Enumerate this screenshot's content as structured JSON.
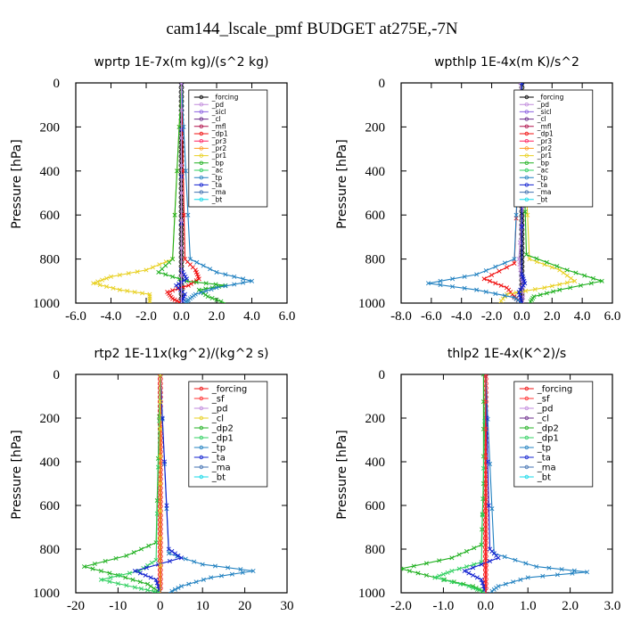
{
  "figure_title": "cam144_lscale_pmf  BUDGET at275E,-7N",
  "colors": {
    "forcing": "#000000",
    "sf": "#ff3030",
    "pd": "#c08adc",
    "sicl": "#8c60e0",
    "cl": "#6a2a8a",
    "mfl": "#b0104a",
    "dp1": "#f01010",
    "pr3": "#ff2060",
    "pr2": "#ff9a20",
    "pr1": "#e8d020",
    "bp": "#20b020",
    "ac": "#30d060",
    "tp": "#2080c0",
    "ta": "#1020d0",
    "ma": "#4070b0",
    "bt": "#10d8e8",
    "dp2": "#20b020",
    "dp1_green": "#30d060"
  },
  "chart_data": [
    {
      "type": "line",
      "title": "wprtp  1E-7x(m kg)/(s^2 kg)",
      "ylabel": "Pressure [hPa]",
      "xlim": [
        -6,
        6
      ],
      "ylim": [
        1000,
        0
      ],
      "xticks": [
        "-6.0",
        "-4.0",
        "-2.0",
        "0.0",
        "2.0",
        "4.0",
        "6.0"
      ],
      "yticks": [
        "0",
        "200",
        "400",
        "600",
        "800",
        "1000"
      ],
      "grid": false,
      "legend_position": "top-right",
      "legend": [
        "_forcing",
        "_pd",
        "_sicl",
        "_cl",
        "_mfl",
        "_dp1",
        "_pr3",
        "_pr2",
        "_pr1",
        "_bp",
        "_ac",
        "_tp",
        "_ta",
        "_ma",
        "_bt"
      ],
      "series": [
        {
          "name": "_forcing",
          "color": "#000000",
          "x": [
            0,
            0,
            0,
            0,
            0
          ],
          "y": [
            0,
            250,
            500,
            750,
            1000
          ]
        },
        {
          "name": "_dp1",
          "color": "#f01010",
          "x": [
            0,
            0.2,
            0.8,
            1.0,
            0.4,
            -0.8,
            -0.5,
            0
          ],
          "y": [
            0,
            800,
            850,
            890,
            920,
            950,
            980,
            1000
          ]
        },
        {
          "name": "_pr1",
          "color": "#e8d020",
          "x": [
            0,
            -0.5,
            -2.0,
            -4.0,
            -5.0,
            -3.5,
            -1.8,
            -1.8
          ],
          "y": [
            0,
            800,
            850,
            880,
            910,
            940,
            960,
            1000
          ]
        },
        {
          "name": "_bp",
          "color": "#20b020",
          "x": [
            0,
            -0.5,
            -1.3,
            0.3,
            2.5,
            1.0,
            1.5,
            2.5
          ],
          "y": [
            0,
            800,
            860,
            900,
            920,
            940,
            970,
            1000
          ]
        },
        {
          "name": "_tp",
          "color": "#2080c0",
          "x": [
            0,
            0.5,
            2.0,
            4.0,
            2.0,
            0.8,
            0.4,
            0.2
          ],
          "y": [
            0,
            800,
            860,
            900,
            930,
            960,
            985,
            1000
          ]
        },
        {
          "name": "_ta",
          "color": "#1020d0",
          "x": [
            0,
            0,
            0.3,
            -0.3,
            0.2,
            0
          ],
          "y": [
            0,
            850,
            890,
            920,
            960,
            1000
          ]
        },
        {
          "name": "_pd",
          "color": "#c08adc",
          "x": [
            0,
            0,
            0
          ],
          "y": [
            0,
            500,
            1000
          ]
        }
      ]
    },
    {
      "type": "line",
      "title": "wpthlp  1E-4x(m K)/s^2",
      "ylabel": "Pressure [hPa]",
      "xlim": [
        -8,
        6
      ],
      "ylim": [
        1000,
        0
      ],
      "xticks": [
        "-8.0",
        "-6.0",
        "-4.0",
        "-2.0",
        "0.0",
        "2.0",
        "4.0",
        "6.0"
      ],
      "yticks": [
        "0",
        "200",
        "400",
        "600",
        "800",
        "1000"
      ],
      "grid": false,
      "legend_position": "top-right",
      "legend": [
        "_forcing",
        "_pd",
        "_sicl",
        "_cl",
        "_mfl",
        "_dp1",
        "_pr3",
        "_pr2",
        "_pr1",
        "_bp",
        "_ac",
        "_tp",
        "_ta",
        "_ma",
        "_bt"
      ],
      "series": [
        {
          "name": "_forcing",
          "color": "#000000",
          "x": [
            0,
            0,
            0,
            0,
            0
          ],
          "y": [
            0,
            250,
            500,
            750,
            1000
          ]
        },
        {
          "name": "_pd",
          "color": "#c08adc",
          "x": [
            -0.1,
            -0.1,
            0.1,
            -0.2,
            0,
            0.1
          ],
          "y": [
            0,
            200,
            500,
            800,
            900,
            1000
          ]
        },
        {
          "name": "_dp1",
          "color": "#f01010",
          "x": [
            0,
            -0.5,
            -2.5,
            -1.0,
            -0.5,
            0
          ],
          "y": [
            0,
            820,
            890,
            930,
            970,
            1000
          ]
        },
        {
          "name": "_pr1",
          "color": "#e8d020",
          "x": [
            0,
            0.5,
            2.5,
            3.5,
            1.5,
            -1.0,
            -1.5
          ],
          "y": [
            0,
            800,
            850,
            900,
            930,
            960,
            1000
          ]
        },
        {
          "name": "_bp",
          "color": "#20b020",
          "x": [
            0,
            0.3,
            3.0,
            5.3,
            2.5,
            0.8,
            0.5
          ],
          "y": [
            0,
            780,
            850,
            900,
            940,
            970,
            1000
          ]
        },
        {
          "name": "_tp",
          "color": "#2080c0",
          "x": [
            0,
            -0.5,
            -3.0,
            -6.2,
            -3.0,
            -0.5,
            0
          ],
          "y": [
            0,
            800,
            870,
            910,
            940,
            975,
            1000
          ]
        },
        {
          "name": "_ta",
          "color": "#1020d0",
          "x": [
            0,
            0,
            0.2,
            -0.2,
            0
          ],
          "y": [
            0,
            870,
            910,
            950,
            1000
          ]
        }
      ]
    },
    {
      "type": "line",
      "title": "rtp2  1E-11x(kg^2)/(kg^2 s)",
      "ylabel": "Pressure [hPa]",
      "xlim": [
        -20,
        30
      ],
      "ylim": [
        1000,
        0
      ],
      "xticks": [
        "-20",
        "-10",
        "0",
        "10",
        "20",
        "30"
      ],
      "yticks": [
        "0",
        "200",
        "400",
        "600",
        "800",
        "1000"
      ],
      "grid": false,
      "legend_position": "top-right",
      "legend": [
        "_forcing",
        "_sf",
        "_pd",
        "_cl",
        "_dp2",
        "_dp1",
        "_tp",
        "_ta",
        "_ma",
        "_bt"
      ],
      "series": [
        {
          "name": "_forcing",
          "color": "#f01010",
          "x": [
            0,
            0,
            0,
            0,
            0
          ],
          "y": [
            0,
            250,
            500,
            750,
            1000
          ]
        },
        {
          "name": "_dp2",
          "color": "#20b020",
          "x": [
            0,
            -1,
            -8,
            -18,
            -10,
            -3,
            0
          ],
          "y": [
            0,
            770,
            830,
            880,
            920,
            960,
            1000
          ]
        },
        {
          "name": "_dp1",
          "color": "#30d060",
          "x": [
            0,
            -1,
            -5,
            -14,
            -6,
            0
          ],
          "y": [
            0,
            850,
            900,
            940,
            975,
            1000
          ]
        },
        {
          "name": "_tp",
          "color": "#2080c0",
          "x": [
            0,
            2,
            10,
            22,
            12,
            5,
            2
          ],
          "y": [
            0,
            820,
            870,
            900,
            930,
            970,
            1000
          ]
        },
        {
          "name": "_ta",
          "color": "#1020d0",
          "x": [
            0,
            2,
            5,
            -6,
            -1,
            0
          ],
          "y": [
            0,
            800,
            840,
            900,
            940,
            1000
          ]
        },
        {
          "name": "_cl",
          "color": "#e8d020",
          "x": [
            0,
            0,
            0
          ],
          "y": [
            0,
            500,
            1000
          ]
        }
      ]
    },
    {
      "type": "line",
      "title": "thlp2  1E-4x(K^2)/s",
      "ylabel": "Pressure [hPa]",
      "xlim": [
        -2,
        3
      ],
      "ylim": [
        1000,
        0
      ],
      "xticks": [
        "-2.0",
        "-1.0",
        "0.0",
        "1.0",
        "2.0",
        "3.0"
      ],
      "yticks": [
        "0",
        "200",
        "400",
        "600",
        "800",
        "1000"
      ],
      "grid": false,
      "legend_position": "top-right",
      "legend": [
        "_forcing",
        "_sf",
        "_pd",
        "_cl",
        "_dp2",
        "_dp1",
        "_tp",
        "_ta",
        "_ma",
        "_bt"
      ],
      "series": [
        {
          "name": "_forcing",
          "color": "#f01010",
          "x": [
            0,
            0,
            0,
            0,
            0
          ],
          "y": [
            0,
            250,
            500,
            750,
            1000
          ]
        },
        {
          "name": "_dp2",
          "color": "#20b020",
          "x": [
            -0.05,
            -0.05,
            -0.1,
            -0.8,
            -2.0,
            -1.2,
            -0.3,
            0
          ],
          "y": [
            0,
            500,
            780,
            840,
            890,
            930,
            970,
            1000
          ]
        },
        {
          "name": "_dp1",
          "color": "#30d060",
          "x": [
            0,
            -0.1,
            -0.8,
            -1.2,
            -0.4,
            0
          ],
          "y": [
            0,
            860,
            900,
            930,
            970,
            1000
          ]
        },
        {
          "name": "_tp",
          "color": "#2080c0",
          "x": [
            0,
            0.2,
            1.2,
            2.4,
            1.0,
            0.3,
            0.1
          ],
          "y": [
            0,
            820,
            880,
            905,
            930,
            970,
            1000
          ]
        },
        {
          "name": "_ta",
          "color": "#1020d0",
          "x": [
            0,
            0.1,
            0.3,
            -0.5,
            -0.1,
            0
          ],
          "y": [
            0,
            800,
            840,
            900,
            940,
            1000
          ]
        },
        {
          "name": "_sf",
          "color": "#ff3030",
          "x": [
            0,
            0,
            0
          ],
          "y": [
            0,
            500,
            1000
          ]
        }
      ]
    }
  ]
}
